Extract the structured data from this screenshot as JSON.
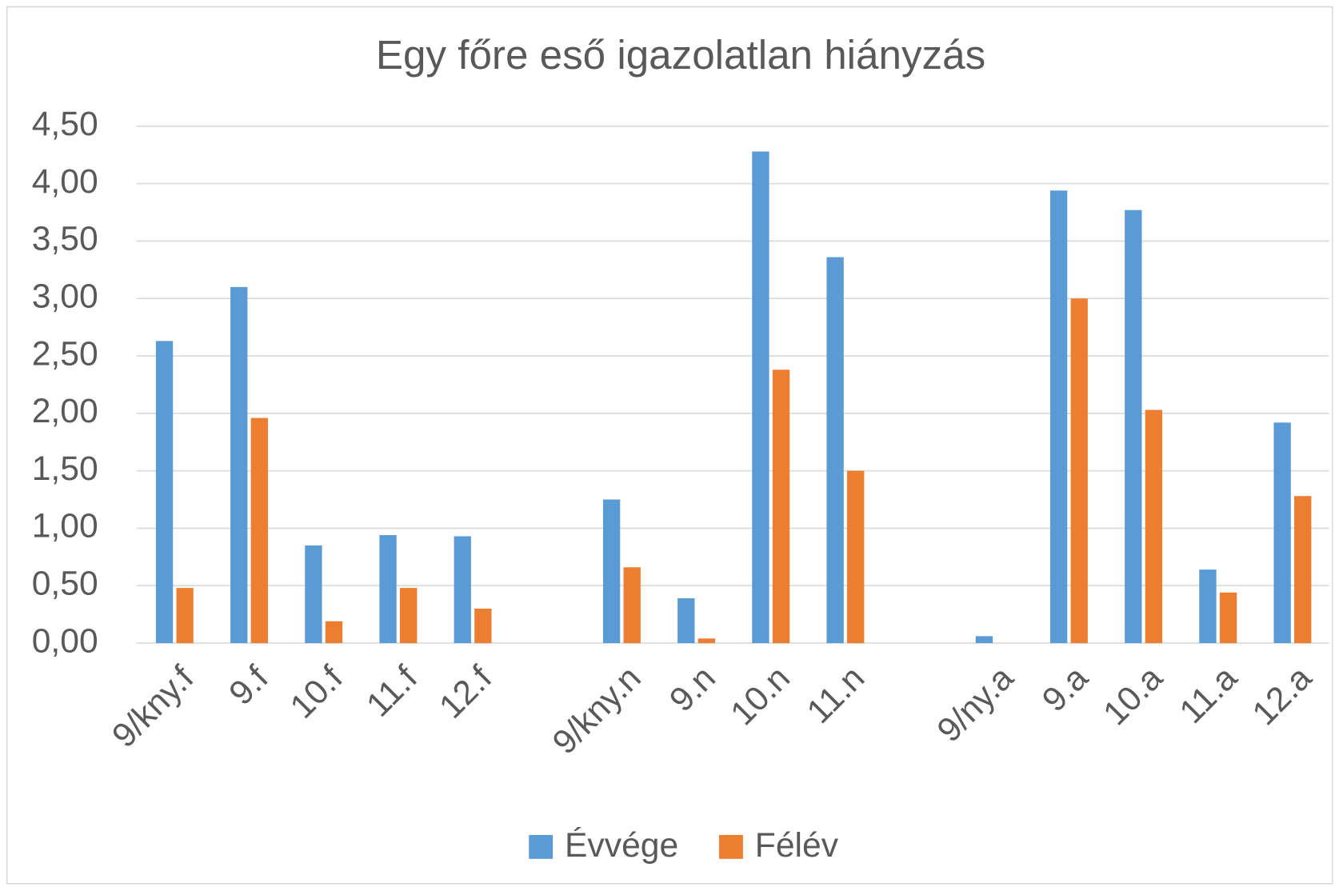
{
  "chart_data": {
    "type": "bar",
    "title": "Egy főre eső igazolatlan hiányzás",
    "categories": [
      "9/kny.f",
      "9.f",
      "10.f",
      "11.f",
      "12.f",
      null,
      "9/kny.n",
      "9.n",
      "10.n",
      "11.n",
      null,
      "9/ny.a",
      "9.a",
      "10.a",
      "11.a",
      "12.a"
    ],
    "series": [
      {
        "name": "Évvége",
        "color": "#5b9bd5",
        "values": [
          2.63,
          3.1,
          0.85,
          0.94,
          0.93,
          null,
          1.25,
          0.39,
          4.28,
          3.36,
          null,
          0.06,
          3.94,
          3.77,
          0.64,
          1.92
        ]
      },
      {
        "name": "Félév",
        "color": "#ed7d31",
        "values": [
          0.48,
          1.96,
          0.19,
          0.48,
          0.3,
          null,
          0.66,
          0.04,
          2.38,
          1.5,
          null,
          0,
          3.0,
          2.03,
          0.44,
          1.28
        ]
      }
    ],
    "ylim": [
      0,
      4.5
    ],
    "yticks": [
      {
        "value": 0,
        "label": "0,00"
      },
      {
        "value": 0.5,
        "label": "0,50"
      },
      {
        "value": 1,
        "label": "1,00"
      },
      {
        "value": 1.5,
        "label": "1,50"
      },
      {
        "value": 2,
        "label": "2,00"
      },
      {
        "value": 2.5,
        "label": "2,50"
      },
      {
        "value": 3,
        "label": "3,00"
      },
      {
        "value": 3.5,
        "label": "3,50"
      },
      {
        "value": 4,
        "label": "4,00"
      },
      {
        "value": 4.5,
        "label": "4,50"
      }
    ],
    "grid": true,
    "legend": "bottom"
  }
}
